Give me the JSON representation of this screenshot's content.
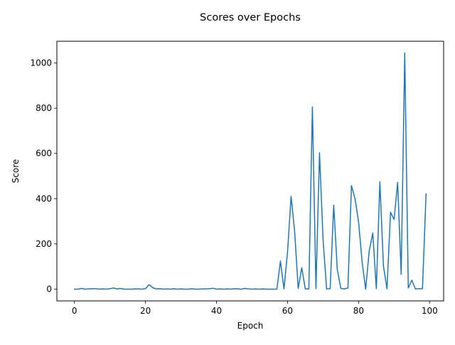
{
  "chart_data": {
    "type": "line",
    "title": "Scores over Epochs",
    "xlabel": "Epoch",
    "ylabel": "Score",
    "xlim": [
      -4.95,
      103.95
    ],
    "ylim": [
      -52,
      1096
    ],
    "xticks": [
      0,
      20,
      40,
      60,
      80,
      100
    ],
    "yticks": [
      0,
      200,
      400,
      600,
      800,
      1000
    ],
    "grid": false,
    "series": [
      {
        "color": "#1f77b4",
        "x": [
          0,
          1,
          2,
          3,
          4,
          5,
          6,
          7,
          8,
          9,
          10,
          11,
          12,
          13,
          14,
          15,
          16,
          17,
          18,
          19,
          20,
          21,
          22,
          23,
          24,
          25,
          26,
          27,
          28,
          29,
          30,
          31,
          32,
          33,
          34,
          35,
          36,
          37,
          38,
          39,
          40,
          41,
          42,
          43,
          44,
          45,
          46,
          47,
          48,
          49,
          50,
          51,
          52,
          53,
          54,
          55,
          56,
          57,
          58,
          59,
          60,
          61,
          62,
          63,
          64,
          65,
          66,
          67,
          68,
          69,
          70,
          71,
          72,
          73,
          74,
          75,
          76,
          77,
          78,
          79,
          80,
          81,
          82,
          83,
          84,
          85,
          86,
          87,
          88,
          89,
          90,
          91,
          92,
          93,
          94,
          95,
          96,
          97,
          98,
          99
        ],
        "values": [
          0,
          0,
          3,
          0,
          1,
          2,
          2,
          0,
          1,
          0,
          2,
          5,
          1,
          3,
          0,
          0,
          0,
          1,
          1,
          0,
          2,
          20,
          7,
          1,
          2,
          0,
          1,
          0,
          2,
          0,
          1,
          0,
          0,
          2,
          0,
          0,
          1,
          1,
          2,
          4,
          0,
          1,
          0,
          1,
          0,
          2,
          1,
          0,
          3,
          1,
          0,
          1,
          0,
          1,
          0,
          0,
          0,
          0,
          124,
          1,
          164,
          410,
          255,
          3,
          95,
          1,
          1,
          806,
          2,
          603,
          220,
          1,
          2,
          372,
          88,
          3,
          1,
          5,
          458,
          400,
          298,
          120,
          0,
          170,
          248,
          2,
          475,
          103,
          1,
          340,
          308,
          472,
          65,
          1045,
          5,
          40,
          1,
          2,
          2,
          421
        ]
      }
    ]
  }
}
